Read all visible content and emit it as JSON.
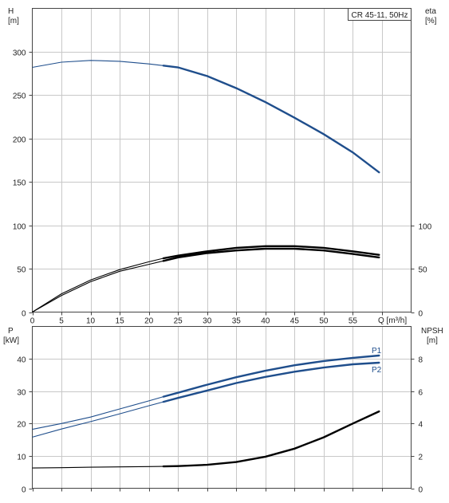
{
  "chart_data": [
    {
      "type": "line",
      "title": "CR 45-11, 50Hz",
      "xlabel": "Q [m³/h]",
      "xlim": [
        0,
        65
      ],
      "x_ticks": [
        "0",
        "5",
        "10",
        "15",
        "20",
        "25",
        "30",
        "35",
        "40",
        "45",
        "50",
        "55"
      ],
      "left_axis": {
        "label_line1": "H",
        "label_line2": "[m]",
        "ylim": [
          0,
          350
        ],
        "ticks": [
          "0",
          "50",
          "100",
          "150",
          "200",
          "250",
          "300"
        ]
      },
      "right_axis": {
        "label_line1": "eta",
        "label_line2": "[%]",
        "ylim": [
          0,
          350
        ],
        "ticks": [
          "0",
          "50",
          "100"
        ]
      },
      "grid": true,
      "series": [
        {
          "axis": "left",
          "color": "#1f4e8c",
          "x": [
            0,
            5,
            10,
            15,
            20,
            22.5,
            25,
            30,
            35,
            40,
            45,
            50,
            55,
            59.5
          ],
          "y": [
            282,
            288,
            290,
            289,
            286,
            284,
            282,
            272,
            258,
            242,
            224,
            205,
            184,
            161
          ]
        },
        {
          "axis": "right",
          "color": "#000000",
          "x": [
            0,
            5,
            10,
            15,
            20,
            22.5,
            25,
            30,
            35,
            40,
            45,
            50,
            55,
            59.5
          ],
          "y": [
            0,
            21,
            37,
            49,
            58,
            62,
            65,
            70,
            74,
            76,
            76,
            74,
            70,
            66
          ]
        },
        {
          "axis": "right",
          "color": "#000000",
          "x": [
            0,
            5,
            10,
            15,
            20,
            22.5,
            25,
            30,
            35,
            40,
            45,
            50,
            55,
            59.5
          ],
          "y": [
            0,
            19,
            35,
            47,
            55,
            59,
            63,
            68,
            71,
            73,
            73,
            71,
            67,
            63
          ]
        }
      ]
    },
    {
      "type": "line",
      "xlim": [
        0,
        65
      ],
      "left_axis": {
        "label_line1": "P",
        "label_line2": "[kW]",
        "ylim": [
          0,
          50
        ],
        "ticks": [
          "0",
          "10",
          "20",
          "30",
          "40"
        ]
      },
      "right_axis": {
        "label_line1": "NPSH",
        "label_line2": "[m]",
        "ylim": [
          0,
          10
        ],
        "ticks": [
          "0",
          "2",
          "4",
          "6",
          "8"
        ]
      },
      "grid": true,
      "series": [
        {
          "name": "P1",
          "axis": "left",
          "color": "#1f4e8c",
          "x": [
            0,
            5,
            10,
            15,
            20,
            22.5,
            25,
            30,
            35,
            40,
            45,
            50,
            55,
            59.5
          ],
          "y": [
            18.2,
            20,
            22,
            24.5,
            27,
            28.3,
            29.5,
            32,
            34.3,
            36.3,
            38,
            39.3,
            40.3,
            41
          ]
        },
        {
          "name": "P2",
          "axis": "left",
          "color": "#1f4e8c",
          "x": [
            0,
            5,
            10,
            15,
            20,
            22.5,
            25,
            30,
            35,
            40,
            45,
            50,
            55,
            59.5
          ],
          "y": [
            15.8,
            18.3,
            20.6,
            23,
            25.5,
            26.7,
            27.9,
            30.2,
            32.5,
            34.4,
            36,
            37.3,
            38.3,
            38.8
          ]
        },
        {
          "axis": "right",
          "color": "#000000",
          "x": [
            0,
            5,
            10,
            15,
            20,
            22.5,
            25,
            30,
            35,
            40,
            45,
            50,
            55,
            59.5
          ],
          "y": [
            1.25,
            1.27,
            1.3,
            1.32,
            1.34,
            1.35,
            1.37,
            1.45,
            1.62,
            1.95,
            2.45,
            3.15,
            4,
            4.75
          ]
        }
      ]
    }
  ]
}
